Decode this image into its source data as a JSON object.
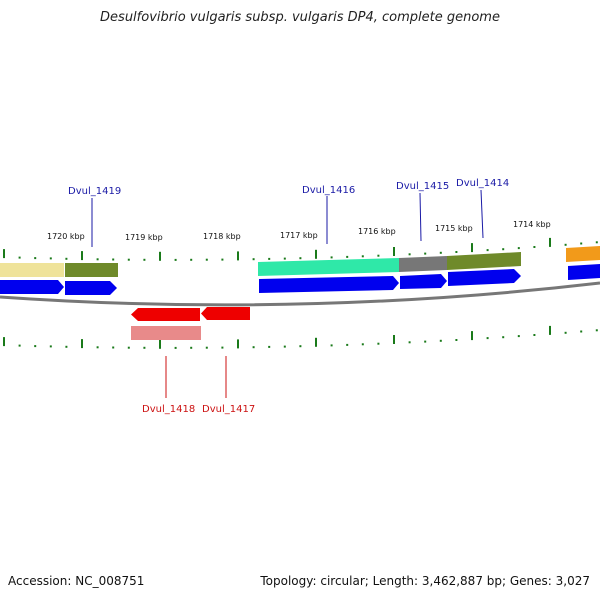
{
  "title": "Desulfovibrio vulgaris subsp. vulgaris DP4, complete genome",
  "footer": {
    "accession": "Accession: NC_008751",
    "stats": "Topology: circular; Length: 3,462,887 bp; Genes: 3,027"
  },
  "scale_labels": [
    "1720 kbp",
    "1719 kbp",
    "1718 kbp",
    "1717 kbp",
    "1716 kbp",
    "1715 kbp",
    "1714 kbp"
  ],
  "gene_labels": {
    "forward": [
      "Dvul_1419",
      "Dvul_1416",
      "Dvul_1415",
      "Dvul_1414"
    ],
    "reverse": [
      "Dvul_1418",
      "Dvul_1417"
    ]
  },
  "colors": {
    "forward_label": "#1a1aa6",
    "reverse_label": "#cc1111",
    "tick": "#1a7a1a",
    "backbone": "#777777",
    "forward_cds": "#0000ee",
    "reverse_cds": "#ee0000",
    "cog_khaki": "#efe39a",
    "cog_olive": "#6f8a2a",
    "cog_mint": "#2fe8a8",
    "cog_grey": "#777777",
    "cog_orange": "#f29a1a",
    "cog_pink": "#e88a8a"
  }
}
